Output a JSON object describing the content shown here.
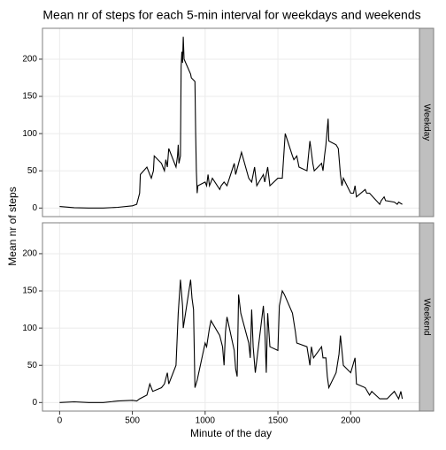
{
  "chart_data": {
    "type": "line",
    "title": "Mean nr of steps for each 5-min interval  for weekdays and weekends",
    "xlabel": "Minute of the day",
    "ylabel": "Mean nr of steps",
    "xlim": [
      -117.75,
      2472.75
    ],
    "xticks": [
      0,
      500,
      1000,
      1500,
      2000
    ],
    "ylim": [
      -11.5,
      241.5
    ],
    "yticks": [
      0,
      50,
      100,
      150,
      200
    ],
    "grid": true,
    "color": "#000000",
    "series": [
      {
        "name": "Weekday",
        "x": [
          0,
          100,
          200,
          300,
          400,
          500,
          530,
          550,
          555,
          600,
          620,
          630,
          645,
          650,
          700,
          710,
          720,
          730,
          740,
          750,
          800,
          810,
          815,
          820,
          830,
          835,
          840,
          845,
          850,
          855,
          900,
          905,
          930,
          935,
          940,
          945,
          950,
          1000,
          1010,
          1020,
          1030,
          1040,
          1050,
          1100,
          1110,
          1130,
          1150,
          1200,
          1210,
          1230,
          1250,
          1300,
          1320,
          1340,
          1355,
          1400,
          1410,
          1430,
          1445,
          1500,
          1530,
          1550,
          1600,
          1610,
          1630,
          1645,
          1700,
          1720,
          1730,
          1740,
          1750,
          1800,
          1810,
          1820,
          1830,
          1845,
          1850,
          1900,
          1915,
          1930,
          1940,
          1950,
          2000,
          2020,
          2030,
          2040,
          2100,
          2110,
          2130,
          2200,
          2210,
          2230,
          2240,
          2300,
          2320,
          2330,
          2355
        ],
        "values": [
          2,
          0.5,
          0,
          0,
          1,
          3,
          5,
          20,
          45,
          55,
          45,
          40,
          50,
          70,
          60,
          55,
          50,
          65,
          55,
          80,
          55,
          70,
          85,
          60,
          70,
          190,
          210,
          195,
          230,
          200,
          180,
          175,
          170,
          100,
          50,
          20,
          30,
          35,
          30,
          45,
          30,
          35,
          40,
          25,
          30,
          35,
          30,
          60,
          45,
          60,
          75,
          40,
          35,
          55,
          30,
          45,
          35,
          55,
          30,
          40,
          40,
          100,
          70,
          65,
          70,
          55,
          50,
          90,
          75,
          60,
          50,
          60,
          50,
          70,
          85,
          120,
          90,
          85,
          80,
          45,
          30,
          40,
          20,
          20,
          30,
          15,
          25,
          20,
          20,
          5,
          10,
          15,
          10,
          8,
          5,
          8,
          5
        ]
      },
      {
        "name": "Weekend",
        "x": [
          0,
          100,
          200,
          300,
          400,
          500,
          530,
          550,
          600,
          620,
          640,
          700,
          720,
          740,
          750,
          800,
          815,
          830,
          845,
          850,
          900,
          910,
          920,
          930,
          945,
          1000,
          1010,
          1030,
          1040,
          1100,
          1120,
          1130,
          1140,
          1150,
          1200,
          1210,
          1220,
          1230,
          1245,
          1300,
          1310,
          1320,
          1330,
          1345,
          1400,
          1410,
          1420,
          1430,
          1445,
          1500,
          1510,
          1530,
          1545,
          1600,
          1620,
          1630,
          1700,
          1720,
          1730,
          1745,
          1800,
          1810,
          1830,
          1840,
          1850,
          1900,
          1920,
          1930,
          1940,
          1950,
          2000,
          2030,
          2040,
          2100,
          2130,
          2145,
          2200,
          2250,
          2300,
          2330,
          2345,
          2355
        ],
        "values": [
          0,
          1,
          0,
          0,
          2,
          3,
          2,
          5,
          10,
          25,
          15,
          20,
          25,
          40,
          25,
          50,
          120,
          165,
          130,
          100,
          165,
          140,
          125,
          20,
          30,
          80,
          75,
          100,
          110,
          90,
          75,
          50,
          95,
          115,
          70,
          45,
          35,
          145,
          120,
          80,
          60,
          125,
          75,
          40,
          130,
          100,
          40,
          120,
          75,
          70,
          130,
          150,
          145,
          120,
          95,
          80,
          75,
          50,
          75,
          60,
          75,
          60,
          60,
          35,
          20,
          40,
          65,
          90,
          70,
          50,
          40,
          60,
          25,
          20,
          10,
          15,
          5,
          5,
          15,
          5,
          15,
          5
        ]
      }
    ]
  }
}
